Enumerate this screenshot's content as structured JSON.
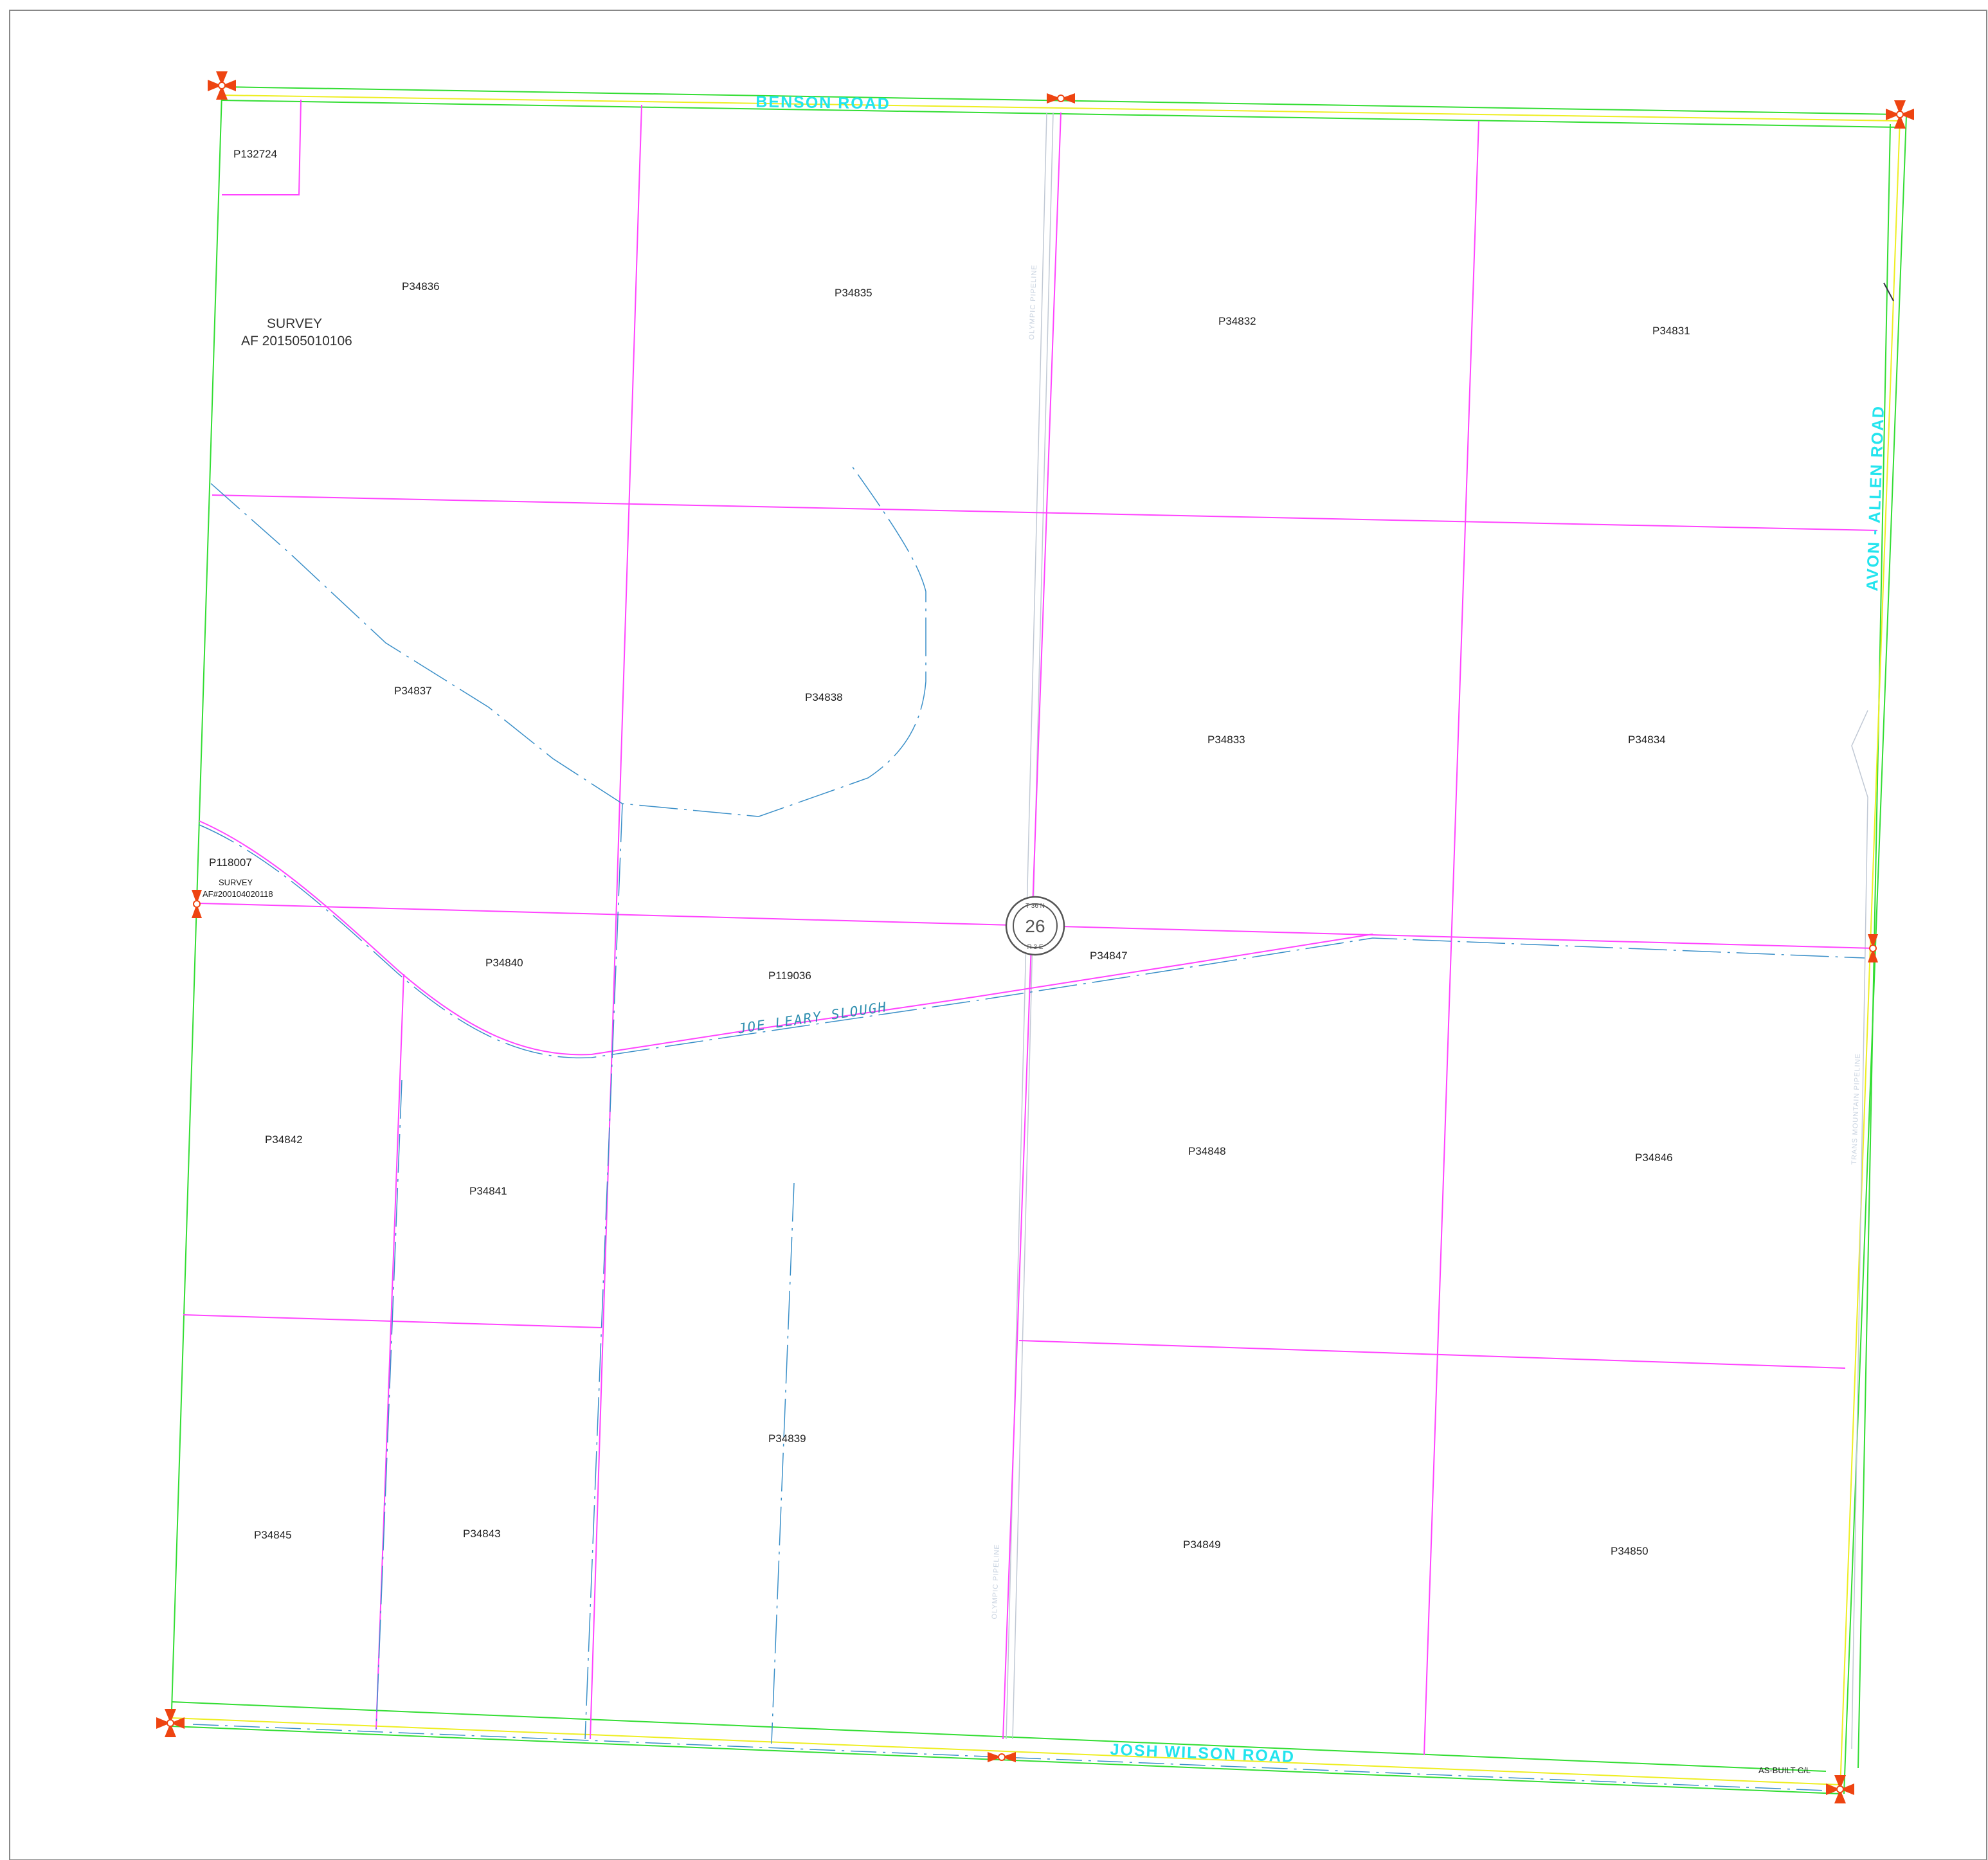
{
  "roads": {
    "north": "BENSON ROAD",
    "east": "AVON - ALLEN ROAD",
    "south": "JOSH WILSON ROAD"
  },
  "water": {
    "slough": "JOE LEARY SLOUGH"
  },
  "pipelines": {
    "north": "OLYMPIC PIPELINE",
    "south": "OLYMPIC PIPELINE",
    "east": "TRANS MOUNTAIN PIPELINE"
  },
  "surveys": {
    "main_line1": "SURVEY",
    "main_line2": "AF  201505010106",
    "small_line1": "SURVEY",
    "small_line2": "AF#200104020118"
  },
  "section": {
    "number": "26",
    "township": "T 36 N",
    "range": "R 3 E"
  },
  "annotations": {
    "as_built": "AS-BUILT C/L"
  },
  "parcels": {
    "p132724": "P132724",
    "p34836": "P34836",
    "p34835": "P34835",
    "p34832": "P34832",
    "p34831": "P34831",
    "p34837": "P34837",
    "p34838": "P34838",
    "p34833": "P34833",
    "p34834": "P34834",
    "p118007": "P118007",
    "p34840": "P34840",
    "p119036": "P119036",
    "p34847": "P34847",
    "p34842": "P34842",
    "p34841": "P34841",
    "p34848": "P34848",
    "p34846": "P34846",
    "p34839": "P34839",
    "p34845": "P34845",
    "p34843": "P34843",
    "p34849": "P34849",
    "p34850": "P34850"
  },
  "colors": {
    "parcel_line": "#ff44ff",
    "road_edge": "#33dd33",
    "road_center": "#eeee22",
    "road_text": "#22e4ee",
    "water": "#3a8fc8",
    "pipeline": "#c0c8d4",
    "monument": "#ee4411"
  }
}
